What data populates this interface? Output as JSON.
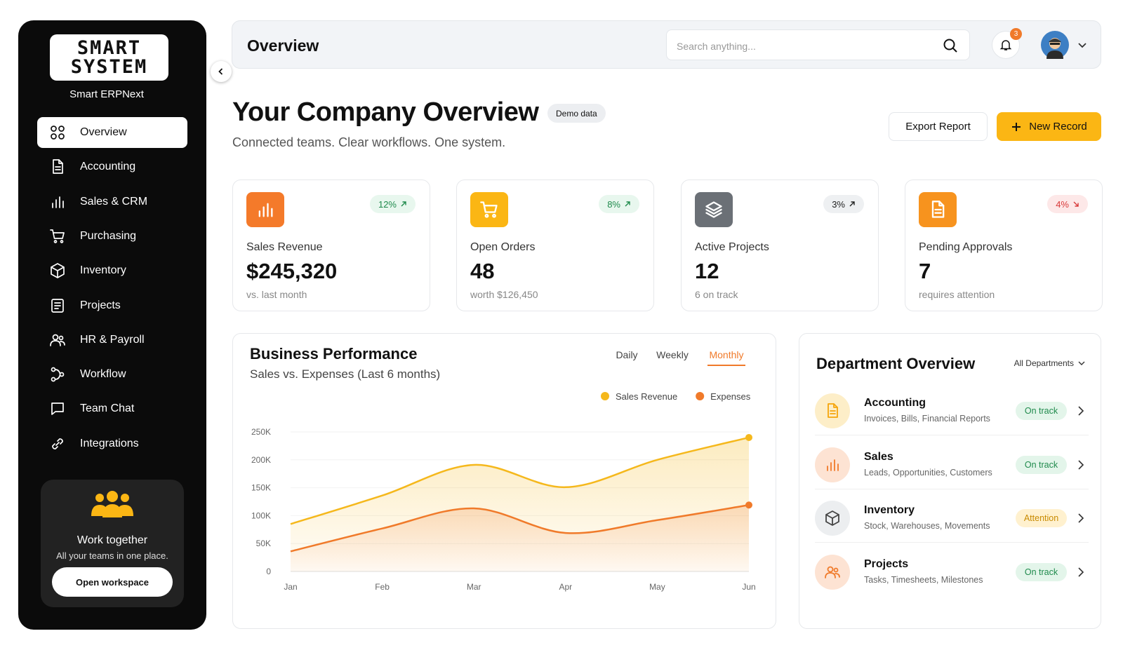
{
  "sidebar": {
    "logo": [
      "SMART",
      "SYSTEM"
    ],
    "brand": "Smart ERPNext",
    "nav": [
      "Overview",
      "Accounting",
      "Sales & CRM",
      "Purchasing",
      "Inventory",
      "Projects",
      "HR & Payroll",
      "Workflow",
      "Team Chat",
      "Integrations"
    ],
    "nav_active": 0,
    "promo": {
      "title": "Work together",
      "text": "All your teams in one place.",
      "button": "Open workspace"
    }
  },
  "header": {
    "title": "Overview",
    "search_placeholder": "Search anything...",
    "notifications": 3
  },
  "page": {
    "title": "Your Company Overview",
    "badge": "Demo data",
    "subtitle": "Connected teams. Clear workflows. One system.",
    "actions": [
      "Export Report",
      "New Record"
    ]
  },
  "kpis": [
    {
      "label": "Sales Revenue",
      "value": "$245,320",
      "note": "vs. last month",
      "change": "12%",
      "tone": "positive",
      "direction": "up"
    },
    {
      "label": "Open Orders",
      "value": "48",
      "note": "worth $126,450",
      "change": "8%",
      "tone": "positive",
      "direction": "up"
    },
    {
      "label": "Active Projects",
      "value": "12",
      "note": "6 on track",
      "change": "3%",
      "tone": "neutral",
      "direction": "up"
    },
    {
      "label": "Pending Approvals",
      "value": "7",
      "note": "requires attention",
      "change": "4%",
      "tone": "negative",
      "direction": "down"
    }
  ],
  "chart_data": {
    "type": "line",
    "title": "Business Performance",
    "subtitle": "Sales vs. Expenses (Last 6 months)",
    "tabs": [
      "Daily",
      "Weekly",
      "Monthly"
    ],
    "active_tab": 2,
    "categories": [
      "Jan",
      "Feb",
      "Mar",
      "Apr",
      "May",
      "Jun"
    ],
    "series": [
      {
        "name": "Sales Revenue",
        "color": "#f5b81c",
        "values": [
          85000,
          136000,
          191000,
          151000,
          200000,
          240000
        ]
      },
      {
        "name": "Expenses",
        "color": "#f07a2a",
        "values": [
          36000,
          77000,
          113000,
          69000,
          92000,
          119000
        ]
      }
    ],
    "ylim": [
      0,
      250000
    ],
    "yticks": [
      {
        "value": 0,
        "label": "0"
      },
      {
        "value": 50000,
        "label": "50K"
      },
      {
        "value": 100000,
        "label": "100K"
      },
      {
        "value": 150000,
        "label": "150K"
      },
      {
        "value": 200000,
        "label": "200K"
      },
      {
        "value": 250000,
        "label": "250K"
      }
    ],
    "grid": true,
    "area": true
  },
  "departments": {
    "title": "Department Overview",
    "filter": "All Departments",
    "items": [
      {
        "name": "Accounting",
        "desc": "Invoices, Bills, Financial Reports",
        "status": "On track",
        "state": "ok"
      },
      {
        "name": "Sales",
        "desc": "Leads, Opportunities, Customers",
        "status": "On track",
        "state": "ok"
      },
      {
        "name": "Inventory",
        "desc": "Stock, Warehouses, Movements",
        "status": "Attention",
        "state": "warn"
      },
      {
        "name": "Projects",
        "desc": "Tasks, Timesheets, Milestones",
        "status": "On track",
        "state": "ok"
      }
    ]
  }
}
